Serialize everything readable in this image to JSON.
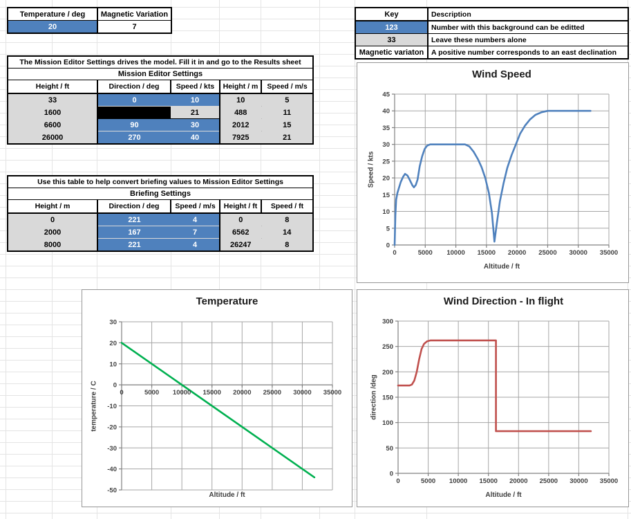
{
  "colors": {
    "editable_cell": "#4F81BD",
    "locked_cell": "#D9D9D9",
    "disabled_cell": "#000000",
    "wind_speed_line": "#4F81BD",
    "temperature_line": "#00B050",
    "wind_direction_line": "#C0504D"
  },
  "input_table": {
    "headers": [
      "Temperature / deg",
      "Magnetic Variation"
    ],
    "values": [
      {
        "v": "20",
        "s": "blue"
      },
      {
        "v": "7",
        "s": "white"
      }
    ]
  },
  "key_table": {
    "headers": [
      "Key",
      "Description"
    ],
    "rows": [
      {
        "key": "123",
        "key_style": "blue",
        "desc": "Number with this background can be editted"
      },
      {
        "key": "33",
        "key_style": "gray",
        "desc": "Leave these numbers alone"
      },
      {
        "key": "Magnetic variaton",
        "key_style": "white",
        "desc": "A positive number corresponds to an east declination"
      }
    ]
  },
  "mission_table": {
    "banner": "The Mission Editor Settings drives the model. Fill it in and go to the Results sheet",
    "title": "Mission Editor Settings",
    "headers": [
      "Height / ft",
      "Direction / deg",
      "Speed / kts",
      "Height / m",
      "Speed / m/s"
    ],
    "rows": [
      [
        {
          "v": "33",
          "s": "gray"
        },
        {
          "v": "0",
          "s": "blue"
        },
        {
          "v": "10",
          "s": "blue"
        },
        {
          "v": "10",
          "s": "gray"
        },
        {
          "v": "5",
          "s": "gray"
        }
      ],
      [
        {
          "v": "1600",
          "s": "gray"
        },
        {
          "v": "",
          "s": "black"
        },
        {
          "v": "21",
          "s": "gray21"
        },
        {
          "v": "488",
          "s": "gray"
        },
        {
          "v": "11",
          "s": "gray"
        }
      ],
      [
        {
          "v": "6600",
          "s": "gray"
        },
        {
          "v": "90",
          "s": "blue"
        },
        {
          "v": "30",
          "s": "blue"
        },
        {
          "v": "2012",
          "s": "gray"
        },
        {
          "v": "15",
          "s": "gray"
        }
      ],
      [
        {
          "v": "26000",
          "s": "gray"
        },
        {
          "v": "270",
          "s": "blue"
        },
        {
          "v": "40",
          "s": "blue"
        },
        {
          "v": "7925",
          "s": "gray"
        },
        {
          "v": "21",
          "s": "gray"
        }
      ]
    ]
  },
  "briefing_table": {
    "banner": "Use this table to help convert briefing values to Mission Editor Settings",
    "title": "Briefing Settings",
    "headers": [
      "Height / m",
      "Direction / deg",
      "Speed / m/s",
      "Height / ft",
      "Speed / ft"
    ],
    "rows": [
      [
        {
          "v": "0",
          "s": "gray"
        },
        {
          "v": "221",
          "s": "blue"
        },
        {
          "v": "4",
          "s": "blue"
        },
        {
          "v": "0",
          "s": "gray"
        },
        {
          "v": "8",
          "s": "gray"
        }
      ],
      [
        {
          "v": "2000",
          "s": "gray"
        },
        {
          "v": "167",
          "s": "blue"
        },
        {
          "v": "7",
          "s": "blue"
        },
        {
          "v": "6562",
          "s": "gray"
        },
        {
          "v": "14",
          "s": "gray"
        }
      ],
      [
        {
          "v": "8000",
          "s": "gray"
        },
        {
          "v": "221",
          "s": "blue"
        },
        {
          "v": "4",
          "s": "blue"
        },
        {
          "v": "26247",
          "s": "gray"
        },
        {
          "v": "8",
          "s": "gray"
        }
      ]
    ]
  },
  "chart_data": [
    {
      "id": "wind_speed",
      "type": "line",
      "title": "Wind Speed",
      "xlabel": "Altitude / ft",
      "ylabel": "Speed / kts",
      "color": "#4F81BD",
      "xlim": [
        0,
        35000
      ],
      "ylim": [
        0,
        45
      ],
      "xticks": [
        0,
        5000,
        10000,
        15000,
        20000,
        25000,
        30000,
        35000
      ],
      "yticks": [
        0,
        5,
        10,
        15,
        20,
        25,
        30,
        35,
        40,
        45
      ],
      "grid": true,
      "legend": "none",
      "points": [
        [
          0,
          0
        ],
        [
          120,
          9
        ],
        [
          250,
          13.5
        ],
        [
          450,
          15.5
        ],
        [
          700,
          17
        ],
        [
          1000,
          18.8
        ],
        [
          1400,
          20.4
        ],
        [
          1700,
          21.2
        ],
        [
          2100,
          20.7
        ],
        [
          2500,
          19.3
        ],
        [
          2900,
          17.8
        ],
        [
          3150,
          17.2
        ],
        [
          3450,
          17.9
        ],
        [
          3750,
          19.5
        ],
        [
          4100,
          23.5
        ],
        [
          4500,
          26.5
        ],
        [
          4900,
          28.6
        ],
        [
          5300,
          29.6
        ],
        [
          5800,
          30
        ],
        [
          11500,
          30
        ],
        [
          12200,
          29.4
        ],
        [
          12900,
          27.8
        ],
        [
          13600,
          25.6
        ],
        [
          14200,
          23.2
        ],
        [
          14800,
          20
        ],
        [
          15400,
          15.5
        ],
        [
          15900,
          9.5
        ],
        [
          16300,
          1
        ],
        [
          16700,
          6.5
        ],
        [
          17200,
          13
        ],
        [
          17800,
          18.5
        ],
        [
          18400,
          23
        ],
        [
          19100,
          26.8
        ],
        [
          19800,
          30
        ],
        [
          20500,
          33.2
        ],
        [
          21300,
          35.6
        ],
        [
          22100,
          37.4
        ],
        [
          23000,
          38.8
        ],
        [
          24000,
          39.6
        ],
        [
          25000,
          40
        ],
        [
          32000,
          40
        ]
      ]
    },
    {
      "id": "temperature",
      "type": "line",
      "title": "Temperature",
      "xlabel": "Altitude / ft",
      "ylabel": "temperature / C",
      "color": "#00B050",
      "xlim": [
        0,
        35000
      ],
      "ylim": [
        -50,
        30
      ],
      "xticks": [
        0,
        5000,
        10000,
        15000,
        20000,
        25000,
        30000,
        35000
      ],
      "yticks": [
        -50,
        -40,
        -30,
        -20,
        -10,
        0,
        10,
        20,
        30
      ],
      "x_axis_at": 0,
      "grid": true,
      "legend": "none",
      "points": [
        [
          0,
          20
        ],
        [
          32000,
          -44
        ]
      ]
    },
    {
      "id": "wind_direction",
      "type": "line",
      "title": "Wind Direction - In flight",
      "xlabel": "Altitude / ft",
      "ylabel": "direction /deg",
      "color": "#C0504D",
      "xlim": [
        0,
        35000
      ],
      "ylim": [
        0,
        300
      ],
      "xticks": [
        0,
        5000,
        10000,
        15000,
        20000,
        25000,
        30000,
        35000
      ],
      "yticks": [
        0,
        50,
        100,
        150,
        200,
        250,
        300
      ],
      "grid": true,
      "legend": "none",
      "points": [
        [
          0,
          173
        ],
        [
          1900,
          173
        ],
        [
          2300,
          175
        ],
        [
          2700,
          183
        ],
        [
          3100,
          200
        ],
        [
          3500,
          225
        ],
        [
          3900,
          245
        ],
        [
          4300,
          255
        ],
        [
          4800,
          260
        ],
        [
          5400,
          262
        ],
        [
          16250,
          262
        ],
        [
          16250,
          83
        ],
        [
          32000,
          83
        ]
      ]
    }
  ]
}
